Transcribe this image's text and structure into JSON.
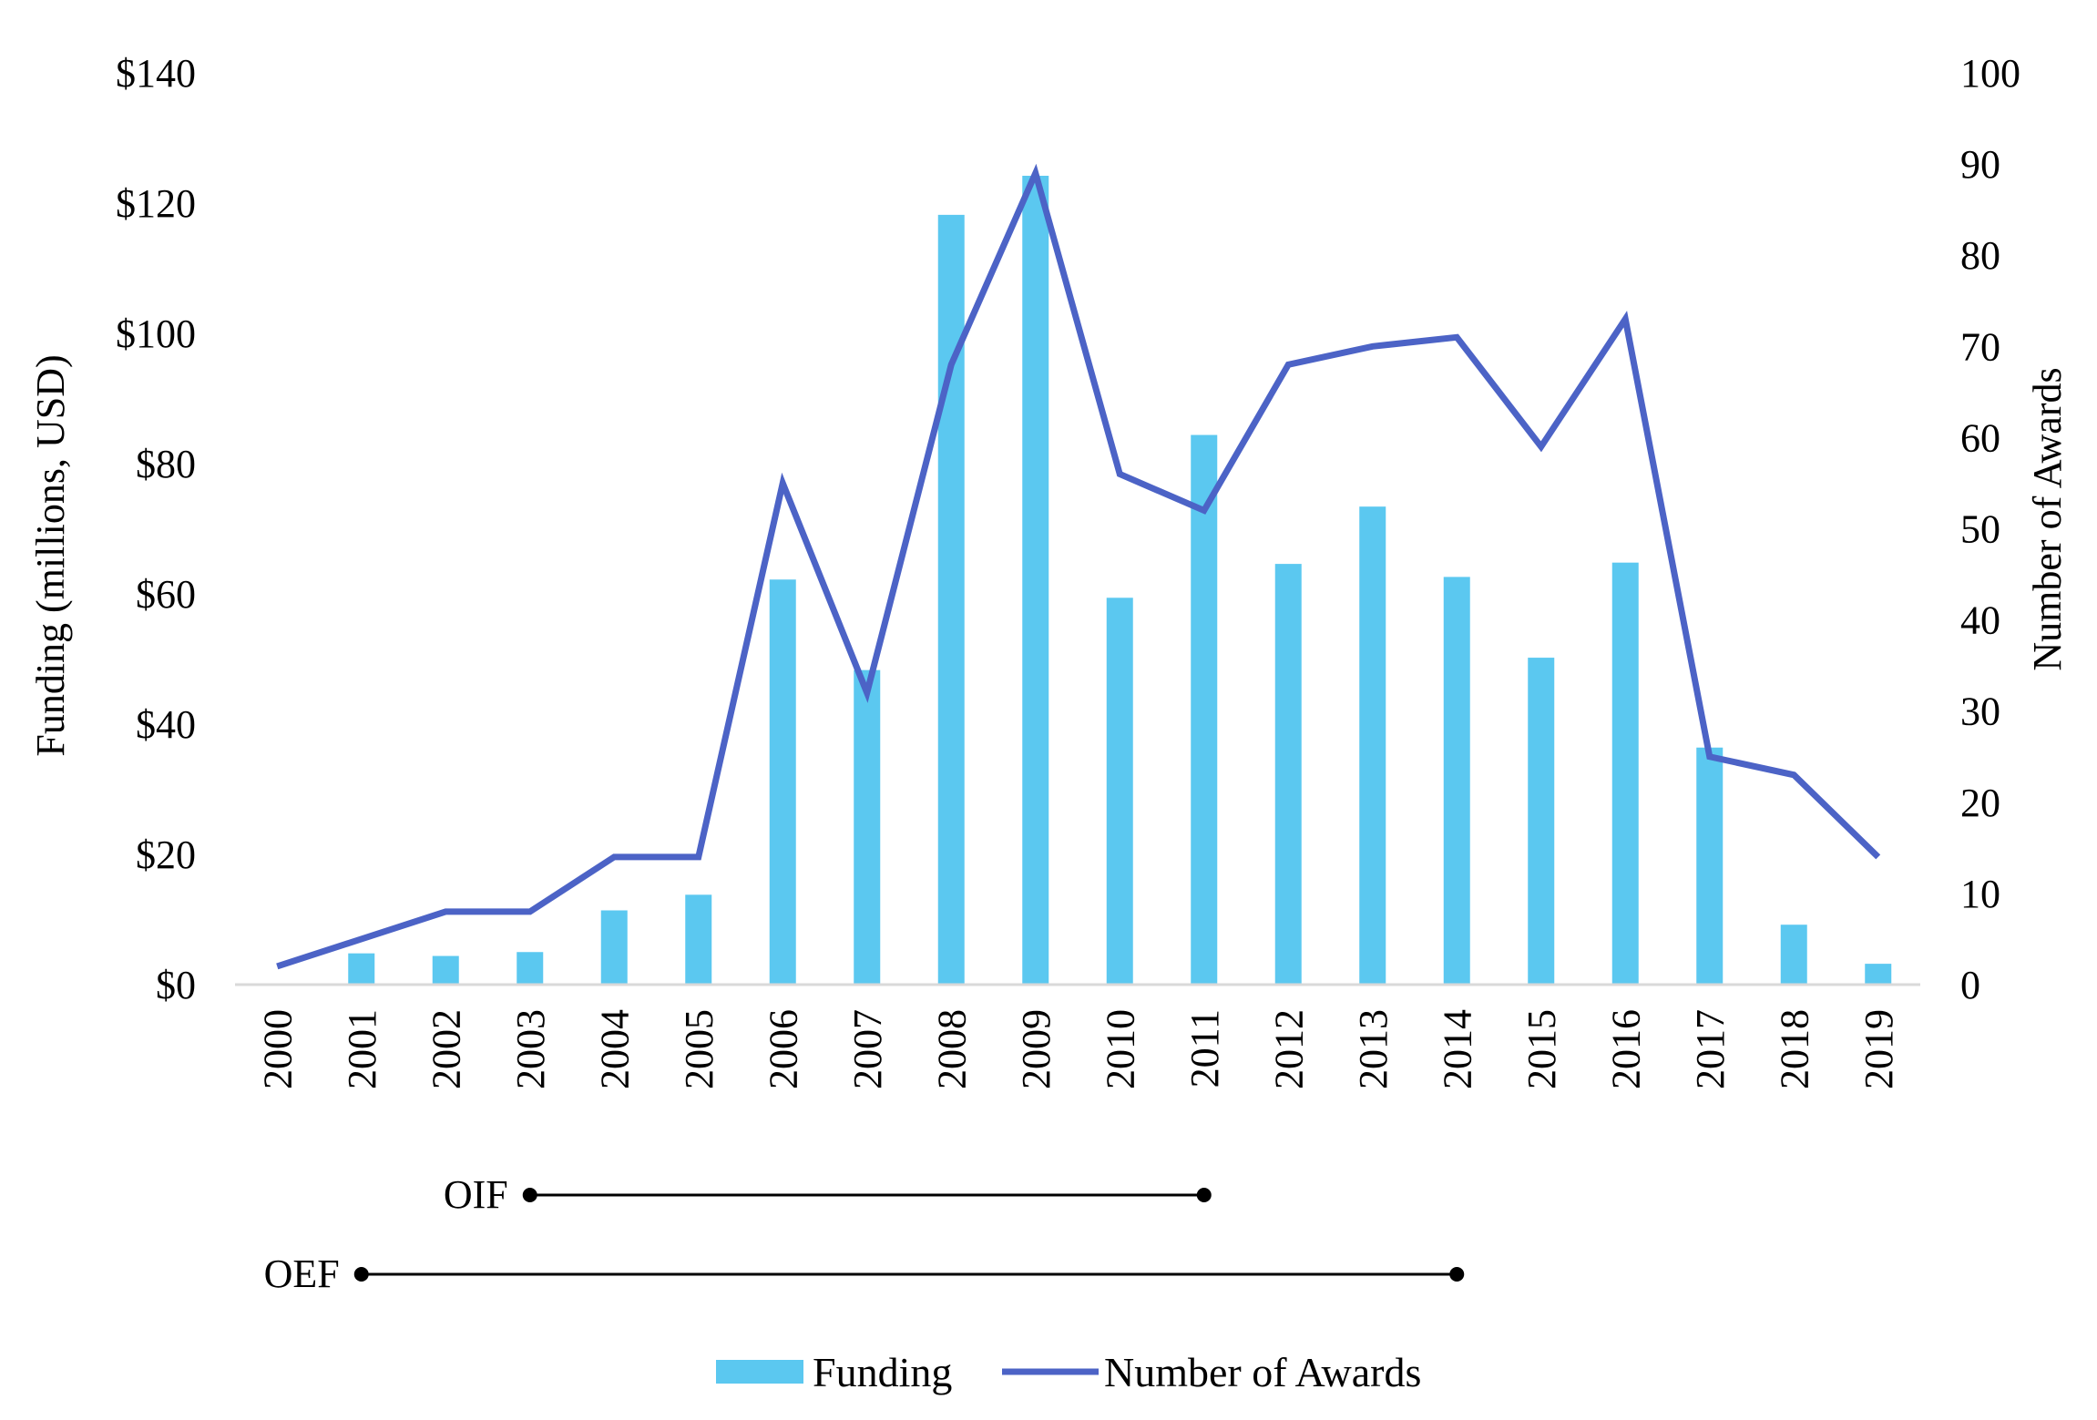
{
  "chart_data": {
    "type": "bar",
    "categories": [
      "2000",
      "2001",
      "2002",
      "2003",
      "2004",
      "2005",
      "2006",
      "2007",
      "2008",
      "2009",
      "2010",
      "2011",
      "2012",
      "2013",
      "2014",
      "2015",
      "2016",
      "2017",
      "2018",
      "2019"
    ],
    "series": [
      {
        "name": "Funding",
        "type": "bar",
        "axis": "left",
        "color": "#5BC8F0",
        "values": [
          0,
          4.8,
          4.4,
          5.0,
          11.4,
          13.8,
          62.2,
          48.3,
          118.2,
          124.2,
          59.4,
          84.4,
          64.6,
          73.4,
          62.6,
          50.2,
          64.8,
          36.4,
          9.2,
          3.2
        ]
      },
      {
        "name": "Number of Awards",
        "type": "line",
        "axis": "right",
        "color": "#4C63C6",
        "values": [
          2,
          5,
          8,
          8,
          14,
          14,
          55,
          32,
          68,
          89,
          56,
          52,
          68,
          70,
          71,
          59,
          73,
          25,
          23,
          14
        ]
      }
    ],
    "ylabel": "Funding (millions, USD)",
    "ylabel_right": "Number of Awards",
    "ylim": [
      0,
      140
    ],
    "ylim_right": [
      0,
      100
    ],
    "yticks": [
      "$0",
      "$20",
      "$40",
      "$60",
      "$80",
      "$100",
      "$120",
      "$140"
    ],
    "yticks_right": [
      "0",
      "10",
      "20",
      "30",
      "40",
      "50",
      "60",
      "70",
      "80",
      "90",
      "100"
    ],
    "grid": false,
    "legend_position": "bottom",
    "periods": [
      {
        "label": "OIF",
        "start": "2003",
        "end": "2011"
      },
      {
        "label": "OEF",
        "start": "2001",
        "end": "2014"
      }
    ]
  }
}
